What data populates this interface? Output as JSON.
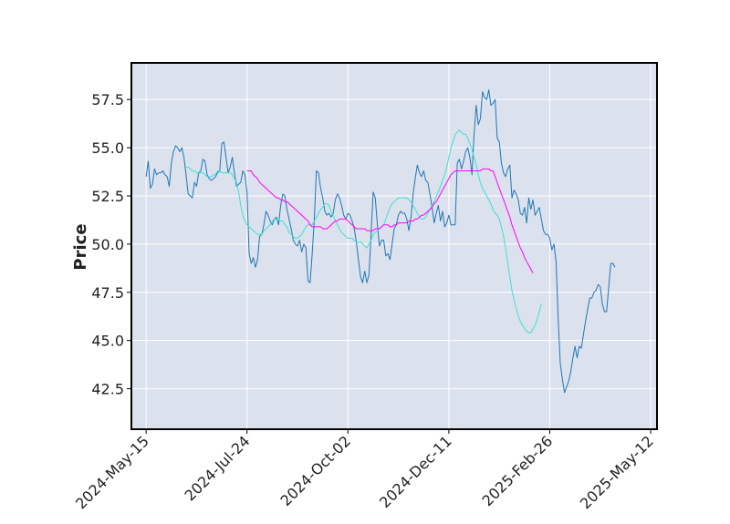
{
  "chart_data": {
    "type": "line",
    "title": "",
    "xlabel": "",
    "ylabel": "Price",
    "x_tick_labels": [
      "2024-May-15",
      "2024-Jul-24",
      "2024-Oct-02",
      "2024-Dec-11",
      "2025-Feb-26",
      "2025-May-12"
    ],
    "y_ticks": [
      42.5,
      45.0,
      47.5,
      50.0,
      52.5,
      55.0,
      57.5
    ],
    "y_tick_labels": [
      "42.5",
      "45.0",
      "47.5",
      "50.0",
      "52.5",
      "55.0",
      "57.5"
    ],
    "ylim": [
      40.4,
      59.4
    ],
    "x_index_range": [
      -7,
      243
    ],
    "x_tick_indices": [
      0,
      48,
      96,
      144,
      192,
      240
    ],
    "grid": true,
    "background_color": "#dce1ee",
    "series": [
      {
        "color": "#1f77b4",
        "width": 1,
        "x_start": 0,
        "values": [
          53.5,
          54.3,
          52.9,
          53.1,
          53.9,
          53.6,
          53.7,
          53.7,
          53.8,
          53.6,
          53.5,
          53.0,
          54.2,
          54.8,
          55.1,
          55.0,
          54.8,
          55.0,
          54.5,
          53.6,
          52.6,
          52.5,
          52.4,
          53.2,
          53.0,
          53.7,
          53.8,
          54.4,
          54.3,
          53.6,
          53.4,
          53.3,
          53.4,
          53.5,
          53.7,
          53.8,
          55.2,
          55.3,
          54.5,
          53.7,
          54.0,
          54.5,
          53.7,
          53.0,
          53.1,
          53.2,
          53.8,
          53.6,
          52.7,
          49.5,
          49.0,
          49.3,
          48.8,
          49.2,
          50.4,
          50.5,
          51.0,
          51.7,
          51.5,
          51.2,
          51.0,
          51.3,
          51.4,
          51.0,
          52.0,
          52.6,
          52.5,
          51.8,
          51.3,
          50.8,
          50.2,
          50.0,
          49.9,
          50.2,
          49.6,
          50.0,
          49.8,
          48.1,
          48.0,
          49.5,
          51.3,
          53.8,
          53.7,
          52.9,
          52.4,
          51.7,
          51.5,
          51.6,
          51.4,
          51.6,
          52.3,
          52.6,
          52.4,
          52.0,
          51.5,
          51.3,
          51.6,
          51.5,
          51.2,
          50.8,
          50.1,
          49.2,
          48.3,
          48.0,
          48.6,
          48.0,
          48.4,
          50.5,
          52.7,
          52.4,
          51.0,
          49.9,
          50.2,
          50.2,
          49.4,
          49.5,
          49.2,
          50.0,
          50.8,
          51.0,
          51.5,
          51.7,
          51.6,
          51.6,
          51.3,
          50.7,
          51.4,
          52.6,
          53.4,
          54.1,
          53.7,
          53.5,
          53.8,
          53.3,
          53.2,
          52.6,
          51.9,
          51.1,
          51.6,
          52.0,
          51.2,
          51.7,
          50.9,
          51.1,
          51.5,
          51.0,
          51.0,
          51.0,
          54.2,
          54.4,
          53.9,
          54.3,
          54.8,
          55.0,
          54.5,
          53.6,
          55.7,
          57.2,
          56.2,
          56.5,
          57.9,
          57.6,
          57.5,
          58.0,
          57.2,
          57.3,
          57.5,
          55.5,
          55.3,
          54.2,
          53.7,
          53.5,
          53.9,
          54.1,
          52.4,
          52.8,
          52.6,
          52.3,
          51.6,
          51.5,
          51.9,
          51.1,
          52.4,
          51.8,
          52.3,
          51.5,
          51.7,
          51.9,
          51.3,
          50.7,
          50.5,
          50.5,
          50.3,
          49.7,
          50.0,
          49.1,
          46.1,
          43.8,
          43.0,
          42.3,
          42.6,
          42.9,
          43.4,
          44.1,
          44.7,
          44.1,
          44.7,
          44.6,
          45.3,
          46.0,
          46.6,
          47.2,
          47.2,
          47.5,
          47.6,
          47.9,
          47.8,
          46.9,
          46.5,
          46.5,
          47.7,
          49.0,
          49.0,
          48.8
        ]
      },
      {
        "color": "#40e0d0",
        "width": 1,
        "x_start": 19,
        "values": [
          54.0,
          54.0,
          53.9,
          53.8,
          53.8,
          53.7,
          53.7,
          53.7,
          53.7,
          53.6,
          53.5,
          53.5,
          53.5,
          53.6,
          53.6,
          53.8,
          53.8,
          53.7,
          53.7,
          53.7,
          53.7,
          53.7,
          53.6,
          53.4,
          53.2,
          52.7,
          52.0,
          51.5,
          51.2,
          51.0,
          50.9,
          50.8,
          50.7,
          50.6,
          50.5,
          50.5,
          50.5,
          50.7,
          50.8,
          50.9,
          51.0,
          51.2,
          51.3,
          51.3,
          51.3,
          51.2,
          51.2,
          51.0,
          50.9,
          50.6,
          50.5,
          50.4,
          50.3,
          50.3,
          50.4,
          50.5,
          50.7,
          50.9,
          51.0,
          51.0,
          51.0,
          51.2,
          51.4,
          51.6,
          51.8,
          51.9,
          52.1,
          52.1,
          52.0,
          51.7,
          51.5,
          51.2,
          51.0,
          50.8,
          50.6,
          50.5,
          50.4,
          50.3,
          50.3,
          50.3,
          50.2,
          50.1,
          50.1,
          50.1,
          50.0,
          49.9,
          49.8,
          50.0,
          50.2,
          50.5,
          50.6,
          50.7,
          50.8,
          50.9,
          51.0,
          51.3,
          51.6,
          51.9,
          52.1,
          52.2,
          52.3,
          52.4,
          52.4,
          52.4,
          52.4,
          52.4,
          52.3,
          52.2,
          52.0,
          51.8,
          51.6,
          51.4,
          51.3,
          51.3,
          51.4,
          51.6,
          51.8,
          52.0,
          52.2,
          52.5,
          52.7,
          53.0,
          53.3,
          53.6,
          54.0,
          54.5,
          55.0,
          55.3,
          55.7,
          55.8,
          55.9,
          55.8,
          55.7,
          55.7,
          55.5,
          55.2,
          54.9,
          54.5,
          54.1,
          53.6,
          53.2,
          52.9,
          52.7,
          52.5,
          52.3,
          52.1,
          51.8,
          51.6,
          51.5,
          51.3,
          50.9,
          50.4,
          49.8,
          49.0,
          48.3,
          47.6,
          47.1,
          46.7,
          46.3,
          46.0,
          45.8,
          45.6,
          45.5,
          45.4,
          45.4,
          45.6,
          45.8,
          46.1,
          46.5,
          46.9
        ]
      },
      {
        "color": "#ff00ff",
        "width": 1,
        "x_start": 48,
        "values": [
          53.8,
          53.8,
          53.8,
          53.6,
          53.5,
          53.4,
          53.2,
          53.1,
          53.0,
          52.9,
          52.8,
          52.7,
          52.6,
          52.5,
          52.4,
          52.4,
          52.3,
          52.3,
          52.2,
          52.2,
          52.1,
          52.0,
          51.9,
          51.8,
          51.7,
          51.6,
          51.5,
          51.4,
          51.3,
          51.2,
          51.0,
          50.9,
          50.9,
          50.9,
          50.9,
          50.9,
          50.8,
          50.8,
          50.8,
          50.9,
          51.0,
          51.1,
          51.2,
          51.2,
          51.3,
          51.3,
          51.3,
          51.3,
          51.2,
          51.1,
          51.0,
          50.9,
          50.8,
          50.8,
          50.8,
          50.8,
          50.8,
          50.7,
          50.7,
          50.7,
          50.7,
          50.8,
          50.8,
          50.8,
          50.9,
          51.0,
          51.0,
          51.0,
          50.9,
          50.9,
          51.0,
          51.0,
          51.1,
          51.1,
          51.1,
          51.1,
          51.1,
          51.2,
          51.2,
          51.2,
          51.3,
          51.3,
          51.4,
          51.5,
          51.5,
          51.6,
          51.7,
          51.8,
          51.9,
          52.1,
          52.2,
          52.4,
          52.6,
          52.8,
          53.0,
          53.2,
          53.4,
          53.6,
          53.7,
          53.8,
          53.8,
          53.8,
          53.8,
          53.8,
          53.8,
          53.8,
          53.8,
          53.8,
          53.8,
          53.8,
          53.8,
          53.8,
          53.9,
          53.9,
          53.9,
          53.9,
          53.8,
          53.8,
          53.5,
          53.2,
          52.9,
          52.6,
          52.3,
          52.0,
          51.7,
          51.4,
          51.0,
          50.7,
          50.4,
          50.1,
          49.8,
          49.6,
          49.3,
          49.1,
          48.9,
          48.7,
          48.5
        ]
      }
    ]
  }
}
